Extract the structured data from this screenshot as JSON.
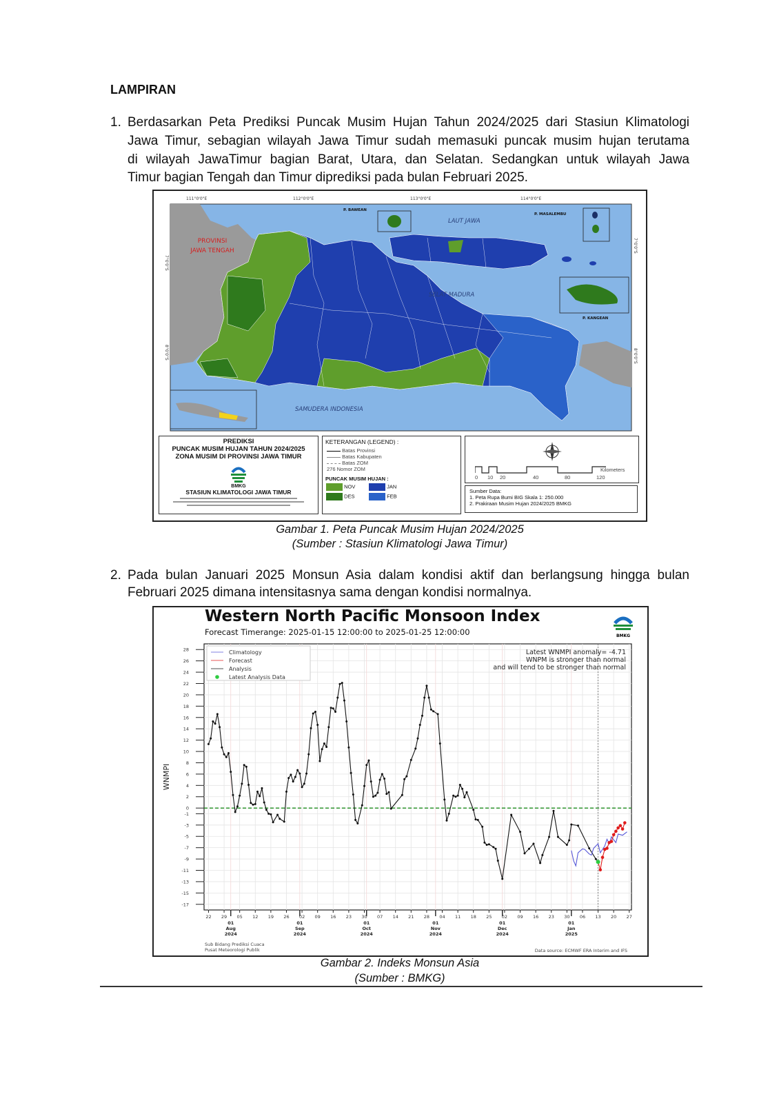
{
  "heading": "LAMPIRAN",
  "items": [
    {
      "number": "1.",
      "lines": [
        "Berdasarkan Peta Prediksi Puncak Musim Hujan Tahun 2024/2025 dari Stasiun Klimatologi",
        "Jawa Timur, sebagian wilayah Jawa Timur sudah memasuki puncak musim hujan terutama",
        "di wilayah JawaTimur bagian Barat, Utara, dan Selatan. Sedangkan untuk wilayah Jawa",
        "Timur bagian Tengah dan Timur diprediksi pada bulan Februari 2025."
      ]
    },
    {
      "number": "2.",
      "lines": [
        "Pada bulan Januari 2025 Monsun Asia dalam kondisi aktif dan berlangsung hingga bulan",
        "Februari 2025 dimana intensitasnya sama dengan kondisi normalnya."
      ]
    }
  ],
  "figure1": {
    "caption": "Gambar 1. Peta Puncak Musim Hujan 2024/2025",
    "source": "(Sumber : Stasiun Klimatologi Jawa Timur)",
    "map": {
      "lon_labels": [
        "111°0'0\"E",
        "112°0'0\"E",
        "113°0'0\"E",
        "114°0'0\"E"
      ],
      "lat_labels": [
        "7°0'0\"S",
        "8°0'0\"S"
      ],
      "place_labels": {
        "central_java": [
          "PROVINSI",
          "JAWA TENGAH"
        ],
        "java_sea": "LAUT JAWA",
        "madura_strait": "SELAT MADURA",
        "indian_ocean": "SAMUDERA INDONESIA",
        "bawean": "P. BAWEAN",
        "masalembu": "P. MASALEMBU",
        "kangean": "P. KANGEAN"
      },
      "colors": {
        "sea": "#86b5e6",
        "land_other": "#9a9a9a",
        "nov": "#5f9e2c",
        "des": "#2f7a1d",
        "jan": "#1f3fae",
        "feb": "#2a62c9"
      }
    },
    "title_box": {
      "lines": [
        "PREDIKSI",
        "PUNCAK MUSIM HUJAN TAHUN 2024/2025",
        "ZONA MUSIM DI PROVINSI JAWA TIMUR"
      ],
      "logo_text": "BMKG",
      "station": "STASIUN KLIMATOLOGI JAWA TIMUR"
    },
    "legend": {
      "title": "KETERANGAN (LEGEND) :",
      "line_items": [
        "Batas Provinsi",
        "Batas Kabupaten",
        "Batas ZOM"
      ],
      "zom_number": "276",
      "zom_label": "Nomor ZOM",
      "peak_title": "PUNCAK MUSIM HUJAN :",
      "peaks": [
        {
          "label": "NOV",
          "color": "#5f9e2c"
        },
        {
          "label": "DES",
          "color": "#2f7a1d"
        },
        {
          "label": "JAN",
          "color": "#1f3fae"
        },
        {
          "label": "FEB",
          "color": "#2a62c9"
        }
      ]
    },
    "scale_bar": {
      "ticks": [
        "0",
        "10",
        "20",
        "40",
        "80",
        "120"
      ],
      "unit": "Kilometers"
    },
    "sources": {
      "title": "Sumber Data:",
      "items": [
        "1. Peta Rupa Bumi BIG Skala 1: 250.000",
        "2. Prakiraan Musim Hujan 2024/2025 BMKG"
      ]
    }
  },
  "figure2": {
    "caption": "Gambar 2. Indeks Monsun Asia",
    "source": "(Sumber : BMKG)",
    "logo_text": "BMKG"
  },
  "chart_data": {
    "type": "line",
    "title": "Western North Pacific Monsoon Index",
    "subtitle": "Forecast Timerange: 2025-01-15 12:00:00 to 2025-01-25 12:00:00",
    "ylabel": "WNMPI",
    "xlabel": "",
    "xlim": [
      "2024-07-20",
      "2025-01-28"
    ],
    "ylim": [
      -18,
      29
    ],
    "grid": true,
    "legend_position": "top-left",
    "y_ticks": [
      28,
      26,
      24,
      22,
      20,
      18,
      16,
      14,
      12,
      10,
      8,
      6,
      4,
      2,
      0,
      -1,
      -3,
      -5,
      -7,
      -9,
      -11,
      -13,
      -15,
      -17
    ],
    "x_minor_ticks": [
      {
        "date": "2024-07-22",
        "label": "22"
      },
      {
        "date": "2024-07-29",
        "label": "29"
      },
      {
        "date": "2024-08-05",
        "label": "05"
      },
      {
        "date": "2024-08-12",
        "label": "12"
      },
      {
        "date": "2024-08-19",
        "label": "19"
      },
      {
        "date": "2024-08-26",
        "label": "26"
      },
      {
        "date": "2024-09-02",
        "label": "02"
      },
      {
        "date": "2024-09-09",
        "label": "09"
      },
      {
        "date": "2024-09-16",
        "label": "16"
      },
      {
        "date": "2024-09-23",
        "label": "23"
      },
      {
        "date": "2024-09-30",
        "label": "30"
      },
      {
        "date": "2024-10-07",
        "label": "07"
      },
      {
        "date": "2024-10-14",
        "label": "14"
      },
      {
        "date": "2024-10-21",
        "label": "21"
      },
      {
        "date": "2024-10-28",
        "label": "28"
      },
      {
        "date": "2024-11-04",
        "label": "04"
      },
      {
        "date": "2024-11-11",
        "label": "11"
      },
      {
        "date": "2024-11-18",
        "label": "18"
      },
      {
        "date": "2024-11-25",
        "label": "25"
      },
      {
        "date": "2024-12-02",
        "label": "02"
      },
      {
        "date": "2024-12-09",
        "label": "09"
      },
      {
        "date": "2024-12-16",
        "label": "16"
      },
      {
        "date": "2024-12-23",
        "label": "23"
      },
      {
        "date": "2024-12-30",
        "label": "30"
      },
      {
        "date": "2025-01-06",
        "label": "06"
      },
      {
        "date": "2025-01-13",
        "label": "13"
      },
      {
        "date": "2025-01-20",
        "label": "20"
      },
      {
        "date": "2025-01-27",
        "label": "27"
      }
    ],
    "x_major_ticks": [
      {
        "date": "2024-08-01",
        "label": [
          "01",
          "Aug",
          "2024"
        ]
      },
      {
        "date": "2024-09-01",
        "label": [
          "01",
          "Sep",
          "2024"
        ]
      },
      {
        "date": "2024-10-01",
        "label": [
          "01",
          "Oct",
          "2024"
        ]
      },
      {
        "date": "2024-11-01",
        "label": [
          "01",
          "Nov",
          "2024"
        ]
      },
      {
        "date": "2024-12-01",
        "label": [
          "01",
          "Dec",
          "2024"
        ]
      },
      {
        "date": "2025-01-01",
        "label": [
          "01",
          "Jan",
          "2025"
        ]
      }
    ],
    "reference_line": {
      "value": 0,
      "color": "#1a8a1a",
      "style": "dashed"
    },
    "series": [
      {
        "name": "Climatology",
        "color": "#5757d8",
        "markers": false,
        "points": [
          [
            "2025-01-01",
            -7.5
          ],
          [
            "2025-01-02",
            -9.3
          ],
          [
            "2025-01-03",
            -10.2
          ],
          [
            "2025-01-04",
            -7.9
          ],
          [
            "2025-01-06",
            -7.2
          ],
          [
            "2025-01-07",
            -7.3
          ],
          [
            "2025-01-09",
            -8.1
          ],
          [
            "2025-01-10",
            -8.3
          ],
          [
            "2025-01-11",
            -7.1
          ],
          [
            "2025-01-13",
            -6.3
          ],
          [
            "2025-01-14",
            -7.9
          ],
          [
            "2025-01-16",
            -6.7
          ],
          [
            "2025-01-17",
            -5.5
          ],
          [
            "2025-01-18",
            -6.3
          ],
          [
            "2025-01-19",
            -5.1
          ],
          [
            "2025-01-21",
            -6.1
          ],
          [
            "2025-01-22",
            -4.6
          ],
          [
            "2025-01-24",
            -4.8
          ],
          [
            "2025-01-26",
            -4.2
          ]
        ]
      },
      {
        "name": "Forecast",
        "color": "#e01b1b",
        "markers": true,
        "points": [
          [
            "2025-01-13",
            -9.5
          ],
          [
            "2025-01-14",
            -10.9
          ],
          [
            "2025-01-15",
            -8.7
          ],
          [
            "2025-01-16",
            -7.3
          ],
          [
            "2025-01-17",
            -7.1
          ],
          [
            "2025-01-18",
            -6.1
          ],
          [
            "2025-01-19",
            -5.9
          ],
          [
            "2025-01-20",
            -4.7
          ],
          [
            "2025-01-21",
            -4.1
          ],
          [
            "2025-01-22",
            -3.5
          ],
          [
            "2025-01-23",
            -3.1
          ],
          [
            "2025-01-24",
            -3.7
          ],
          [
            "2025-01-25",
            -2.6
          ]
        ]
      },
      {
        "name": "Analysis",
        "color": "#111111",
        "markers": true,
        "points": [
          [
            "2024-07-22",
            11.3
          ],
          [
            "2024-07-23",
            12.3
          ],
          [
            "2024-07-24",
            15.3
          ],
          [
            "2024-07-25",
            14.9
          ],
          [
            "2024-07-26",
            16.6
          ],
          [
            "2024-07-27",
            14.3
          ],
          [
            "2024-07-28",
            10.7
          ],
          [
            "2024-07-29",
            9.5
          ],
          [
            "2024-07-30",
            9.0
          ],
          [
            "2024-07-31",
            9.7
          ],
          [
            "2024-08-01",
            6.4
          ],
          [
            "2024-08-02",
            2.3
          ],
          [
            "2024-08-03",
            -0.7
          ],
          [
            "2024-08-04",
            0.3
          ],
          [
            "2024-08-05",
            2.2
          ],
          [
            "2024-08-06",
            4.3
          ],
          [
            "2024-08-07",
            7.6
          ],
          [
            "2024-08-08",
            7.3
          ],
          [
            "2024-08-09",
            4.1
          ],
          [
            "2024-08-10",
            0.9
          ],
          [
            "2024-08-11",
            0.6
          ],
          [
            "2024-08-12",
            0.7
          ],
          [
            "2024-08-13",
            2.9
          ],
          [
            "2024-08-14",
            2.1
          ],
          [
            "2024-08-15",
            3.5
          ],
          [
            "2024-08-16",
            1.0
          ],
          [
            "2024-08-17",
            -0.3
          ],
          [
            "2024-08-18",
            -1.0
          ],
          [
            "2024-08-19",
            -1.1
          ],
          [
            "2024-08-20",
            -2.5
          ],
          [
            "2024-08-22",
            -1.2
          ],
          [
            "2024-08-23",
            -1.9
          ],
          [
            "2024-08-25",
            -2.4
          ],
          [
            "2024-08-26",
            2.9
          ],
          [
            "2024-08-27",
            5.3
          ],
          [
            "2024-08-28",
            5.9
          ],
          [
            "2024-08-29",
            4.7
          ],
          [
            "2024-08-30",
            5.5
          ],
          [
            "2024-08-31",
            6.7
          ],
          [
            "2024-09-01",
            6.1
          ],
          [
            "2024-09-02",
            3.7
          ],
          [
            "2024-09-03",
            4.3
          ],
          [
            "2024-09-04",
            6.1
          ],
          [
            "2024-09-05",
            9.5
          ],
          [
            "2024-09-06",
            14.1
          ],
          [
            "2024-09-07",
            16.7
          ],
          [
            "2024-09-08",
            17.0
          ],
          [
            "2024-09-09",
            14.7
          ],
          [
            "2024-09-10",
            8.3
          ],
          [
            "2024-09-11",
            10.4
          ],
          [
            "2024-09-12",
            11.4
          ],
          [
            "2024-09-13",
            10.8
          ],
          [
            "2024-09-14",
            14.3
          ],
          [
            "2024-09-15",
            17.7
          ],
          [
            "2024-09-16",
            17.6
          ],
          [
            "2024-09-17",
            17.0
          ],
          [
            "2024-09-18",
            19.5
          ],
          [
            "2024-09-19",
            21.9
          ],
          [
            "2024-09-20",
            22.1
          ],
          [
            "2024-09-21",
            19.0
          ],
          [
            "2024-09-22",
            15.3
          ],
          [
            "2024-09-23",
            10.7
          ],
          [
            "2024-09-24",
            6.2
          ],
          [
            "2024-09-25",
            2.4
          ],
          [
            "2024-09-26",
            -2.1
          ],
          [
            "2024-09-27",
            -2.7
          ],
          [
            "2024-09-29",
            0.5
          ],
          [
            "2024-09-30",
            3.9
          ],
          [
            "2024-10-01",
            7.6
          ],
          [
            "2024-10-02",
            8.4
          ],
          [
            "2024-10-03",
            4.7
          ],
          [
            "2024-10-04",
            2.0
          ],
          [
            "2024-10-05",
            2.2
          ],
          [
            "2024-10-06",
            2.7
          ],
          [
            "2024-10-07",
            5.0
          ],
          [
            "2024-10-08",
            6.0
          ],
          [
            "2024-10-09",
            5.2
          ],
          [
            "2024-10-10",
            2.5
          ],
          [
            "2024-10-11",
            2.8
          ],
          [
            "2024-10-12",
            -0.1
          ],
          [
            "2024-10-17",
            2.3
          ],
          [
            "2024-10-18",
            5.1
          ],
          [
            "2024-10-19",
            5.6
          ],
          [
            "2024-10-21",
            8.5
          ],
          [
            "2024-10-23",
            10.5
          ],
          [
            "2024-10-24",
            12.3
          ],
          [
            "2024-10-25",
            14.7
          ],
          [
            "2024-10-26",
            16.3
          ],
          [
            "2024-10-27",
            19.5
          ],
          [
            "2024-10-28",
            21.6
          ],
          [
            "2024-10-29",
            19.5
          ],
          [
            "2024-10-30",
            17.4
          ],
          [
            "2024-10-31",
            17.1
          ],
          [
            "2024-11-02",
            16.6
          ],
          [
            "2024-11-03",
            11.4
          ],
          [
            "2024-11-05",
            1.5
          ],
          [
            "2024-11-06",
            -2.2
          ],
          [
            "2024-11-07",
            -1.0
          ],
          [
            "2024-11-09",
            2.2
          ],
          [
            "2024-11-10",
            2.0
          ],
          [
            "2024-11-11",
            2.2
          ],
          [
            "2024-11-12",
            4.1
          ],
          [
            "2024-11-13",
            3.4
          ],
          [
            "2024-11-14",
            1.9
          ],
          [
            "2024-11-15",
            2.8
          ],
          [
            "2024-11-18",
            -0.3
          ],
          [
            "2024-11-19",
            -2.0
          ],
          [
            "2024-11-20",
            -2.1
          ],
          [
            "2024-11-22",
            -3.3
          ],
          [
            "2024-11-23",
            -6.1
          ],
          [
            "2024-11-24",
            -6.5
          ],
          [
            "2024-11-25",
            -6.4
          ],
          [
            "2024-11-27",
            -6.9
          ],
          [
            "2024-11-28",
            -7.2
          ],
          [
            "2024-11-29",
            -9.3
          ],
          [
            "2024-12-01",
            -12.5
          ],
          [
            "2024-12-05",
            -1.2
          ],
          [
            "2024-12-09",
            -4.2
          ],
          [
            "2024-12-11",
            -8.0
          ],
          [
            "2024-12-13",
            -7.2
          ],
          [
            "2024-12-15",
            -6.3
          ],
          [
            "2024-12-18",
            -9.7
          ],
          [
            "2024-12-19",
            -8.3
          ],
          [
            "2024-12-22",
            -5.1
          ],
          [
            "2024-12-24",
            -0.5
          ],
          [
            "2024-12-26",
            -5.1
          ],
          [
            "2024-12-30",
            -6.5
          ],
          [
            "2024-12-31",
            -5.7
          ],
          [
            "2025-01-01",
            -2.9
          ],
          [
            "2025-01-04",
            -3.1
          ],
          [
            "2025-01-09",
            -7.1
          ],
          [
            "2025-01-12",
            -9.0
          ],
          [
            "2025-01-13",
            -9.5
          ]
        ]
      }
    ],
    "latest_analysis": {
      "name": "Latest Analysis Data",
      "date": "2025-01-13",
      "value": -9.5,
      "color": "#2ecc40"
    },
    "annotations": [
      "Latest WNMPI anomaly= -4.71",
      "WNPM is stronger than normal",
      "and will tend to be stronger than normal"
    ],
    "footer_left": [
      "Sub Bidang Prediksi Cuaca",
      "Pusat Meteorologi Publik"
    ],
    "footer_right": "Data source: ECMWF ERA Interim and IFS"
  }
}
